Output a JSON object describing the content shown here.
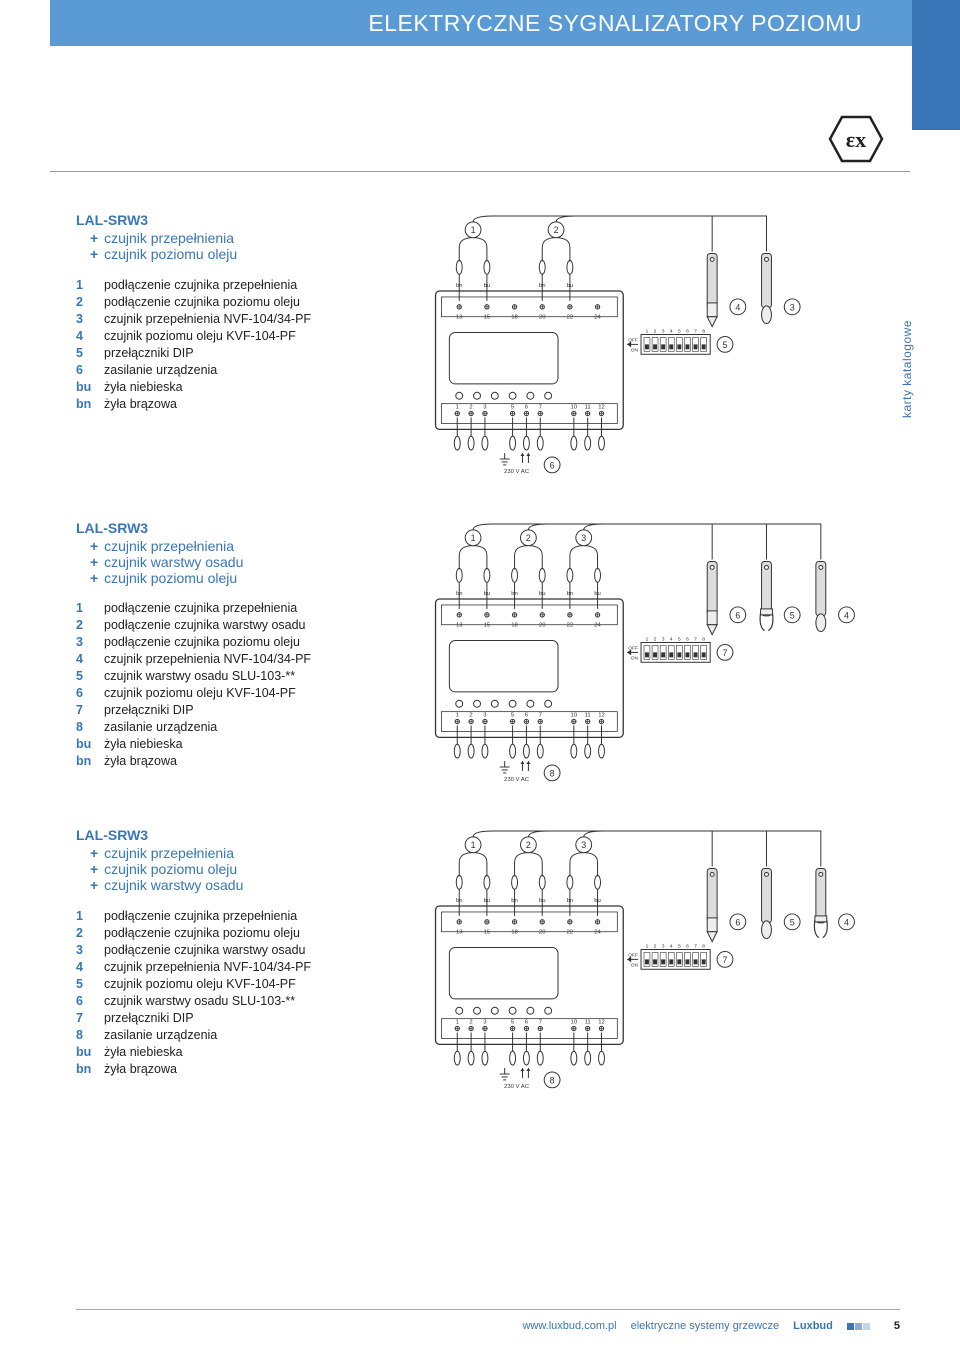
{
  "colors": {
    "accent": "#3976b7",
    "header_bg": "#5b9bd5",
    "text": "#222222",
    "line": "#333333",
    "grey": "#888888"
  },
  "header": {
    "title": "ELEKTRYCZNE SYGNALIZATORY POZIOMU"
  },
  "ex_badge": {
    "label": "εx"
  },
  "side_label": "karty katalogowe",
  "sections": [
    {
      "title": "LAL-SRW3",
      "plus": [
        "czujnik przepełnienia",
        "czujnik poziomu oleju"
      ],
      "legend": [
        {
          "k": "1",
          "v": "podłączenie czujnika przepełnienia"
        },
        {
          "k": "2",
          "v": "podłączenie czujnika poziomu oleju"
        },
        {
          "k": "3",
          "v": "czujnik przepełnienia NVF-104/34-PF"
        },
        {
          "k": "4",
          "v": "czujnik poziomu oleju KVF-104-PF"
        },
        {
          "k": "5",
          "v": "przełączniki DIP"
        },
        {
          "k": "6",
          "v": "zasilanie urządzenia"
        },
        {
          "k": "bu",
          "v": "żyła niebieska"
        },
        {
          "k": "bn",
          "v": "żyła brązowa"
        }
      ],
      "diagram": {
        "top_callouts": [
          "1",
          "2"
        ],
        "wire_labels": [
          "bn",
          "bu",
          "bn",
          "bu"
        ],
        "top_terminals": [
          "13",
          "15",
          "18",
          "20",
          "22",
          "24"
        ],
        "leds": 6,
        "dip": {
          "label_top": "OFF",
          "label_bot": "ON",
          "count": 8,
          "labels": [
            "1",
            "2",
            "3",
            "4",
            "5",
            "6",
            "7",
            "8"
          ],
          "callout": "5"
        },
        "bottom_left_terminals": [
          "1",
          "2",
          "3"
        ],
        "bottom_mid_terminals": [
          "5",
          "6",
          "7"
        ],
        "bottom_right_terminals": [
          "10",
          "11",
          "12"
        ],
        "ac_label": "230 V AC",
        "ac_callout": "6",
        "right_callouts": [
          "4",
          "3"
        ],
        "probe_count": 2
      }
    },
    {
      "title": "LAL-SRW3",
      "plus": [
        "czujnik przepełnienia",
        "czujnik warstwy osadu",
        "czujnik poziomu oleju"
      ],
      "legend": [
        {
          "k": "1",
          "v": "podłączenie czujnika przepełnienia"
        },
        {
          "k": "2",
          "v": "podłączenie czujnika warstwy osadu"
        },
        {
          "k": "3",
          "v": "podłączenie czujnika poziomu oleju"
        },
        {
          "k": "4",
          "v": "czujnik przepełnienia NVF-104/34-PF"
        },
        {
          "k": "5",
          "v": "czujnik warstwy osadu SLU-103-**"
        },
        {
          "k": "6",
          "v": "czujnik poziomu oleju KVF-104-PF"
        },
        {
          "k": "7",
          "v": "przełączniki DIP"
        },
        {
          "k": "8",
          "v": "zasilanie urządzenia"
        },
        {
          "k": "bu",
          "v": "żyła niebieska"
        },
        {
          "k": "bn",
          "v": "żyła brązowa"
        }
      ],
      "diagram": {
        "top_callouts": [
          "1",
          "2",
          "3"
        ],
        "wire_labels": [
          "bn",
          "bu",
          "bn",
          "bu"
        ],
        "top_terminals": [
          "13",
          "15",
          "18",
          "20",
          "22",
          "24"
        ],
        "leds": 6,
        "dip": {
          "label_top": "OFF",
          "label_bot": "ON",
          "count": 8,
          "labels": [
            "1",
            "2",
            "3",
            "4",
            "5",
            "6",
            "7",
            "8"
          ],
          "callout": "7"
        },
        "bottom_left_terminals": [
          "1",
          "2",
          "3"
        ],
        "bottom_mid_terminals": [
          "5",
          "6",
          "7"
        ],
        "bottom_right_terminals": [
          "10",
          "11",
          "12"
        ],
        "ac_label": "230 V AC",
        "ac_callout": "8",
        "right_callouts": [
          "6",
          "5",
          "4"
        ],
        "probe_count": 3
      }
    },
    {
      "title": "LAL-SRW3",
      "plus": [
        "czujnik przepełnienia",
        "czujnik poziomu oleju",
        "czujnik warstwy osadu"
      ],
      "legend": [
        {
          "k": "1",
          "v": "podłączenie czujnika przepełnienia"
        },
        {
          "k": "2",
          "v": "podłączenie czujnika poziomu oleju"
        },
        {
          "k": "3",
          "v": "podłączenie czujnika warstwy osadu"
        },
        {
          "k": "4",
          "v": "czujnik przepełnienia NVF-104/34-PF"
        },
        {
          "k": "5",
          "v": "czujnik poziomu oleju KVF-104-PF"
        },
        {
          "k": "6",
          "v": "czujnik warstwy osadu SLU-103-**"
        },
        {
          "k": "7",
          "v": "przełączniki DIP"
        },
        {
          "k": "8",
          "v": "zasilanie urządzenia"
        },
        {
          "k": "bu",
          "v": "żyła niebieska"
        },
        {
          "k": "bn",
          "v": "żyła brązowa"
        }
      ],
      "diagram": {
        "top_callouts": [
          "1",
          "2",
          "3"
        ],
        "wire_labels": [
          "bn",
          "bu",
          "bn",
          "bu"
        ],
        "top_terminals": [
          "13",
          "15",
          "18",
          "20",
          "22",
          "24"
        ],
        "leds": 6,
        "dip": {
          "label_top": "OFF",
          "label_bot": "ON",
          "count": 8,
          "labels": [
            "1",
            "2",
            "3",
            "4",
            "5",
            "6",
            "7",
            "8"
          ],
          "callout": "7"
        },
        "bottom_left_terminals": [
          "1",
          "2",
          "3"
        ],
        "bottom_mid_terminals": [
          "5",
          "6",
          "7"
        ],
        "bottom_right_terminals": [
          "10",
          "11",
          "12"
        ],
        "ac_label": "230 V AC",
        "ac_callout": "8",
        "right_callouts": [
          "6",
          "5",
          "4"
        ],
        "probe_count": 3
      }
    }
  ],
  "footer": {
    "url": "www.luxbud.com.pl",
    "tagline": "elektryczne systemy grzewcze",
    "brand": "Luxbud",
    "page": "5"
  }
}
